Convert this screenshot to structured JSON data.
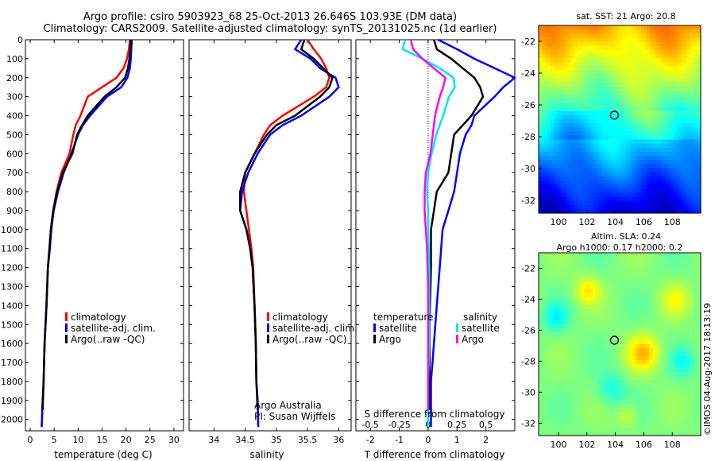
{
  "header": {
    "line1": "Argo profile: csiro 5903923_68 25-Oct-2013 26.646S 103.93E (DM data)",
    "line2": "Climatology: CARS2009. Satellite-adjusted climatology: synTS_20131025.nc (1d earlier)"
  },
  "colors": {
    "climatology": "#ff0000",
    "satellite_adj": "#0000ff",
    "argo": "#000000",
    "s_satellite": "#00e5ee",
    "s_argo": "#ff00ff"
  },
  "depth_ticks": [
    "0",
    "100",
    "200",
    "300",
    "400",
    "500",
    "600",
    "700",
    "800",
    "900",
    "1000",
    "1100",
    "1200",
    "1300",
    "1400",
    "1500",
    "1600",
    "1700",
    "1800",
    "1900",
    "2000"
  ],
  "chart_data": [
    {
      "type": "line",
      "xlabel": "temperature (deg C)",
      "ylabel": "",
      "xlim": [
        -1,
        32
      ],
      "ylim": [
        2060,
        0
      ],
      "xticks": [
        "0",
        "5",
        "10",
        "15",
        "20",
        "25",
        "30"
      ],
      "legend": [
        "climatology",
        "satellite-adj. clim.",
        "Argo(..raw -QC)"
      ],
      "series": [
        {
          "name": "climatology",
          "x": [
            20.8,
            20.6,
            20.2,
            19.5,
            18.0,
            15.0,
            12.0,
            10.5,
            9.5,
            9.0,
            8.2,
            6.5,
            5.5,
            4.8,
            4.3,
            4.0,
            3.7,
            3.4,
            3.2,
            3.0,
            2.8,
            2.6,
            2.4
          ],
          "y": [
            0,
            50,
            100,
            150,
            200,
            250,
            300,
            400,
            450,
            500,
            600,
            700,
            800,
            900,
            1000,
            1100,
            1200,
            1400,
            1500,
            1600,
            1800,
            1900,
            2040
          ]
        },
        {
          "name": "satellite-adj. clim.",
          "x": [
            21.2,
            21.1,
            21.0,
            20.8,
            20.3,
            19.0,
            16.0,
            12.5,
            11.0,
            10.0,
            8.6,
            7.0,
            5.8,
            4.9,
            4.4,
            4.1,
            3.7,
            3.4,
            3.2,
            3.0,
            2.8,
            2.6,
            2.4
          ],
          "y": [
            0,
            50,
            100,
            150,
            200,
            250,
            300,
            400,
            450,
            500,
            600,
            700,
            800,
            900,
            1000,
            1100,
            1200,
            1400,
            1500,
            1600,
            1800,
            1900,
            2040
          ]
        },
        {
          "name": "Argo(..raw -QC)",
          "x": [
            21.0,
            20.9,
            20.7,
            20.4,
            19.8,
            18.0,
            15.5,
            12.0,
            10.8,
            9.8,
            8.8,
            6.8,
            5.6,
            4.8,
            4.3,
            4.0,
            3.7,
            3.4,
            3.2,
            3.0,
            2.8,
            2.6
          ],
          "y": [
            0,
            50,
            100,
            150,
            200,
            250,
            300,
            400,
            450,
            500,
            600,
            700,
            800,
            900,
            1000,
            1100,
            1200,
            1400,
            1500,
            1600,
            1800,
            1950
          ]
        }
      ]
    },
    {
      "type": "line",
      "xlabel": "salinity",
      "ylabel": "",
      "xlim": [
        33.6,
        36.2
      ],
      "ylim": [
        2060,
        0
      ],
      "xticks": [
        "34",
        "34.5",
        "35",
        "35.5",
        "36"
      ],
      "legend": [
        "climatology",
        "satellite-adj. clim.",
        "Argo(..raw -QC)"
      ],
      "annotation": [
        "Argo Australia",
        "PI: Susan Wijffels"
      ],
      "series": [
        {
          "name": "climatology",
          "x": [
            35.5,
            35.6,
            35.72,
            35.8,
            35.85,
            35.8,
            35.6,
            35.1,
            34.9,
            34.8,
            34.65,
            34.5,
            34.48,
            34.52,
            34.56,
            34.6,
            34.63,
            34.65,
            34.67,
            34.68,
            34.7,
            34.71
          ],
          "y": [
            0,
            50,
            100,
            150,
            200,
            250,
            300,
            400,
            450,
            500,
            600,
            700,
            800,
            900,
            1000,
            1100,
            1200,
            1400,
            1600,
            1800,
            1900,
            2040
          ]
        },
        {
          "name": "satellite-adj. clim.",
          "x": [
            35.4,
            35.3,
            35.55,
            35.7,
            35.95,
            36.0,
            35.85,
            35.4,
            35.1,
            34.9,
            34.7,
            34.55,
            34.45,
            34.42,
            34.52,
            34.58,
            34.62,
            34.65,
            34.67,
            34.68,
            34.7,
            34.71
          ],
          "y": [
            0,
            50,
            100,
            150,
            200,
            250,
            300,
            400,
            450,
            500,
            600,
            700,
            800,
            900,
            1000,
            1100,
            1200,
            1400,
            1600,
            1800,
            1900,
            2040
          ]
        },
        {
          "name": "Argo(..raw -QC)",
          "x": [
            35.45,
            35.4,
            35.6,
            35.75,
            35.9,
            35.85,
            35.7,
            35.3,
            35.0,
            34.85,
            34.65,
            34.5,
            34.42,
            34.42,
            34.52,
            34.58,
            34.62,
            34.65,
            34.67,
            34.68,
            34.7
          ],
          "y": [
            0,
            50,
            100,
            150,
            200,
            250,
            300,
            400,
            450,
            500,
            600,
            700,
            800,
            900,
            1000,
            1100,
            1200,
            1400,
            1600,
            1800,
            1950
          ]
        }
      ]
    },
    {
      "type": "line",
      "xlabel": "T difference from climatology",
      "ylabel": "",
      "xlim": [
        -2.5,
        3
      ],
      "ylim": [
        2060,
        0
      ],
      "xticks": [
        "-2",
        "-1",
        "0",
        "1",
        "2"
      ],
      "top_xlabel": "S difference from climatology",
      "top_xticks": [
        "-0.5",
        "-0.25",
        "0",
        "0.25",
        "0.5"
      ],
      "legend_groups": [
        {
          "heading": "temperature",
          "items": [
            "satellite",
            "Argo"
          ]
        },
        {
          "heading": "salinity",
          "items": [
            "satellite",
            "Argo"
          ]
        }
      ],
      "series": [
        {
          "name": "temperature satellite",
          "x": [
            0.35,
            1.0,
            1.6,
            2.3,
            3.0,
            2.6,
            2.3,
            1.6,
            1.5,
            1.3,
            1.1,
            1.0,
            0.9,
            0.7,
            0.5,
            0.4,
            0.3,
            0.25,
            0.2,
            0.15,
            0.1,
            0.1,
            0.1
          ],
          "y": [
            0,
            50,
            100,
            150,
            200,
            250,
            300,
            400,
            450,
            500,
            600,
            700,
            800,
            900,
            1000,
            1200,
            1400,
            1500,
            1600,
            1700,
            1800,
            1900,
            2040
          ]
        },
        {
          "name": "temperature Argo",
          "x": [
            0.2,
            0.3,
            0.8,
            1.2,
            1.6,
            1.8,
            1.9,
            1.5,
            1.2,
            0.9,
            0.8,
            0.7,
            0.3,
            0.2,
            0.1,
            0.1,
            0.05,
            0.05,
            0.05
          ],
          "y": [
            0,
            50,
            100,
            150,
            200,
            250,
            300,
            400,
            450,
            500,
            600,
            700,
            800,
            900,
            1000,
            1200,
            1500,
            1800,
            1950
          ]
        },
        {
          "name": "salinity satellite",
          "x": [
            -0.2,
            -0.22,
            -0.05,
            0.1,
            0.22,
            0.23,
            0.18,
            0.13,
            0.07,
            0.03,
            0.0,
            -0.01,
            0.0,
            0.0,
            0.01,
            0.01,
            0.01,
            0.0,
            0.0,
            0.0
          ],
          "y": [
            0,
            50,
            100,
            150,
            200,
            250,
            300,
            400,
            500,
            600,
            700,
            800,
            900,
            1000,
            1200,
            1400,
            1600,
            1800,
            1900,
            2040
          ]
        },
        {
          "name": "salinity Argo",
          "x": [
            -0.15,
            -0.13,
            -0.05,
            0.05,
            0.15,
            0.13,
            0.1,
            0.06,
            0.04,
            0.02,
            -0.02,
            -0.03,
            -0.03,
            -0.02,
            -0.01,
            0.0,
            0.0,
            0.0
          ],
          "y": [
            0,
            50,
            100,
            150,
            200,
            250,
            300,
            400,
            500,
            600,
            700,
            800,
            900,
            1000,
            1100,
            1300,
            1600,
            1950
          ]
        }
      ]
    },
    {
      "type": "heatmap",
      "title": "sat. SST: 21  Argo: 20.8",
      "xticks": [
        "100",
        "102",
        "104",
        "106",
        "108"
      ],
      "yticks": [
        "-22",
        "-24",
        "-26",
        "-28",
        "-30",
        "-32"
      ],
      "marker": {
        "lon": 103.93,
        "lat": -26.646
      }
    },
    {
      "type": "heatmap",
      "title_line1": "Altim. SLA: 0.24",
      "title_line2": "Argo h1000: 0.17  h2000: 0.2",
      "xticks": [
        "100",
        "102",
        "104",
        "106",
        "108"
      ],
      "yticks": [
        "-22",
        "-24",
        "-26",
        "-28",
        "-30",
        "-32"
      ],
      "marker": {
        "lon": 103.93,
        "lat": -26.646
      }
    }
  ],
  "credit": "©IMOS 04-Aug-2017 18:13:19"
}
